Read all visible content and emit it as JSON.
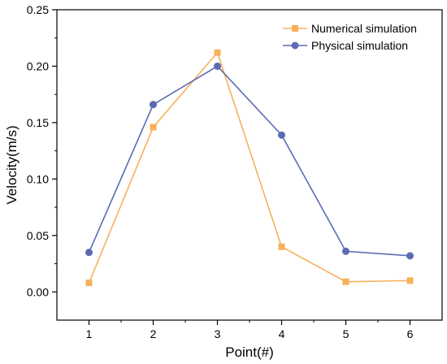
{
  "chart_data": {
    "type": "line",
    "xlabel": "Point(#)",
    "ylabel": "Velocity(m/s)",
    "x": [
      1,
      2,
      3,
      4,
      5,
      6
    ],
    "xlim": [
      0.5,
      6.5
    ],
    "ylim": [
      -0.025,
      0.25
    ],
    "yticks": [
      0.0,
      0.05,
      0.1,
      0.15,
      0.2,
      0.25
    ],
    "ytick_labels": [
      "0.00",
      "0.05",
      "0.10",
      "0.15",
      "0.20",
      "0.25"
    ],
    "xtick_labels": [
      "1",
      "2",
      "3",
      "4",
      "5",
      "6"
    ],
    "grid": false,
    "legend_position": "top-right",
    "series": [
      {
        "name": "Numerical simulation",
        "values": [
          0.008,
          0.146,
          0.212,
          0.04,
          0.009,
          0.01
        ],
        "color": "#f7b05a",
        "marker": "square"
      },
      {
        "name": "Physical simulation",
        "values": [
          0.035,
          0.166,
          0.2,
          0.139,
          0.036,
          0.032
        ],
        "color": "#5b6bb3",
        "marker": "circle"
      }
    ]
  }
}
